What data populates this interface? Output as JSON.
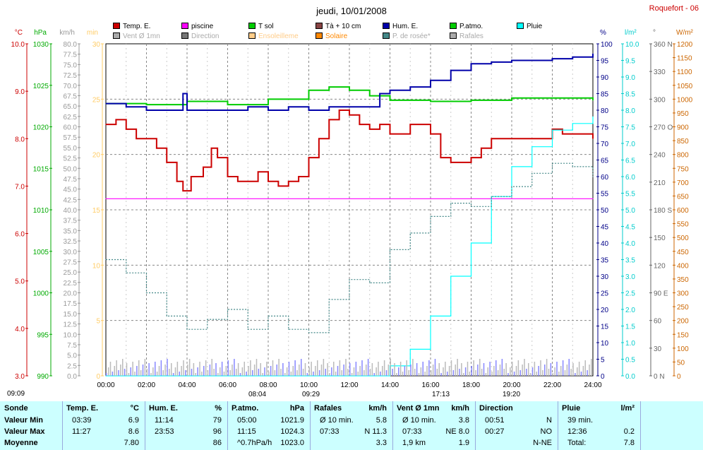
{
  "title": "jeudi, 10/01/2008",
  "station": "Roquefort - 06",
  "legend": [
    {
      "label": "Temp. E.",
      "color": "#cc0000"
    },
    {
      "label": "piscine",
      "color": "#ff00ff"
    },
    {
      "label": "T sol",
      "color": "#00cc00"
    },
    {
      "label": "Tà + 10 cm",
      "color": "#884444"
    },
    {
      "label": "Hum. E.",
      "color": "#0000aa"
    },
    {
      "label": "P.atmo.",
      "color": "#00cc00"
    },
    {
      "label": "Pluie",
      "color": "#00ffff"
    },
    {
      "label": "Vent Ø 1mn",
      "color": "#aaaaaa"
    },
    {
      "label": "Direction",
      "color": "#777777"
    },
    {
      "label": "Ensoleilleme",
      "color": "#ffcc88"
    },
    {
      "label": "Solaire",
      "color": "#ff8800"
    },
    {
      "label": "P. de rosée*",
      "color": "#448888"
    },
    {
      "label": "Rafales",
      "color": "#aaaaaa"
    }
  ],
  "axes": {
    "temp": {
      "unit": "°C",
      "ticks": [
        "10.0",
        "9.0",
        "8.0",
        "7.0",
        "6.0",
        "5.0",
        "4.0",
        "3.0"
      ],
      "color": "#cc0000"
    },
    "pres": {
      "unit": "hPa",
      "ticks": [
        "1030",
        "1025",
        "1020",
        "1015",
        "1010",
        "1005",
        "1000",
        "995",
        "990"
      ],
      "color": "#00aa00"
    },
    "wind": {
      "unit": "km/h",
      "ticks": [
        "80.0",
        "77.5",
        "75.0",
        "72.5",
        "70.0",
        "67.5",
        "65.0",
        "62.5",
        "60.0",
        "57.5",
        "55.0",
        "52.5",
        "50.0",
        "47.5",
        "45.0",
        "42.5",
        "40.0",
        "37.5",
        "35.0",
        "32.5",
        "30.0",
        "27.5",
        "25.0",
        "22.5",
        "20.0",
        "17.5",
        "15.0",
        "12.5",
        "10.0",
        "7.5",
        "5.0",
        "2.5",
        "0.0"
      ],
      "color": "#999999"
    },
    "min": {
      "unit": "min",
      "ticks": [
        "30",
        "25",
        "20",
        "15",
        "10",
        "5",
        "0"
      ],
      "color": "#ffcc66"
    },
    "hum": {
      "unit": "%",
      "ticks": [
        "100",
        "95",
        "90",
        "85",
        "80",
        "75",
        "70",
        "65",
        "60",
        "55",
        "50",
        "45",
        "40",
        "35",
        "30",
        "25",
        "20",
        "15",
        "10",
        "5",
        "0"
      ],
      "color": "#000088"
    },
    "rain": {
      "unit": "l/m²",
      "ticks": [
        "10.0",
        "9.5",
        "9.0",
        "8.5",
        "8.0",
        "7.5",
        "7.0",
        "6.5",
        "6.0",
        "5.5",
        "5.0",
        "4.5",
        "4.0",
        "3.5",
        "3.0",
        "2.5",
        "2.0",
        "1.5",
        "1.0",
        "0.5",
        "0.0"
      ],
      "color": "#00cccc"
    },
    "dir": {
      "unit": "°",
      "ticks": [
        "360 N",
        "330",
        "300",
        "270 O",
        "240",
        "210",
        "180 S",
        "150",
        "120",
        "90 E",
        "60",
        "30",
        "0 N"
      ],
      "color": "#666666"
    },
    "solar": {
      "unit": "W/m²",
      "ticks": [
        "1200",
        "1150",
        "1100",
        "1050",
        "1000",
        "950",
        "900",
        "850",
        "800",
        "750",
        "700",
        "650",
        "600",
        "550",
        "500",
        "450",
        "400",
        "350",
        "300",
        "250",
        "200",
        "150",
        "100",
        "50",
        "0"
      ],
      "color": "#cc6600"
    },
    "x_ticks": [
      "00:00",
      "02:00",
      "04:00",
      "06:00",
      "08:00",
      "10:00",
      "12:00",
      "14:00",
      "16:00",
      "18:00",
      "20:00",
      "22:00",
      "24:00"
    ]
  },
  "sun_marks": [
    "09:09",
    "08:04",
    "09:29",
    "17:13",
    "19:20"
  ],
  "chart_data": {
    "type": "line",
    "x_unit": "hours",
    "series": [
      {
        "name": "Temp. E.",
        "axis": "temp",
        "color": "#cc0000",
        "points": [
          [
            0,
            8.3
          ],
          [
            0.5,
            8.4
          ],
          [
            1,
            8.2
          ],
          [
            1.5,
            8.0
          ],
          [
            2,
            8.0
          ],
          [
            2.5,
            7.8
          ],
          [
            3,
            7.5
          ],
          [
            3.5,
            7.1
          ],
          [
            3.8,
            6.9
          ],
          [
            4.2,
            7.2
          ],
          [
            4.8,
            7.4
          ],
          [
            5.2,
            7.8
          ],
          [
            5.5,
            7.6
          ],
          [
            6,
            7.2
          ],
          [
            6.5,
            7.1
          ],
          [
            7,
            7.1
          ],
          [
            7.5,
            7.3
          ],
          [
            8,
            7.1
          ],
          [
            8.5,
            7.0
          ],
          [
            9,
            7.1
          ],
          [
            9.5,
            7.2
          ],
          [
            10,
            7.6
          ],
          [
            10.5,
            8.0
          ],
          [
            11,
            8.4
          ],
          [
            11.5,
            8.6
          ],
          [
            12,
            8.5
          ],
          [
            12.5,
            8.3
          ],
          [
            13,
            8.2
          ],
          [
            13.5,
            8.3
          ],
          [
            14,
            8.1
          ],
          [
            15,
            8.3
          ],
          [
            16,
            8.1
          ],
          [
            16.5,
            7.6
          ],
          [
            17,
            7.5
          ],
          [
            18,
            7.6
          ],
          [
            18.5,
            7.8
          ],
          [
            19,
            8.0
          ],
          [
            20,
            8.0
          ],
          [
            21,
            8.0
          ],
          [
            22,
            8.2
          ],
          [
            22.5,
            8.1
          ],
          [
            24,
            8.0
          ]
        ]
      },
      {
        "name": "piscine",
        "axis": "min",
        "color": "#ff00ff",
        "points": [
          [
            0,
            16
          ],
          [
            24,
            16
          ]
        ]
      },
      {
        "name": "T sol",
        "axis": "min",
        "color": "#00cc00",
        "points": [
          [
            0,
            24.6
          ],
          [
            2,
            24.5
          ],
          [
            4,
            24.8
          ],
          [
            6,
            24.5
          ],
          [
            8,
            25.0
          ],
          [
            10,
            25.8
          ],
          [
            11,
            26.1
          ],
          [
            12,
            25.8
          ],
          [
            13,
            25.3
          ],
          [
            14,
            24.9
          ],
          [
            16,
            24.8
          ],
          [
            18,
            24.9
          ],
          [
            20,
            25.1
          ],
          [
            24,
            24.9
          ]
        ]
      },
      {
        "name": "Hum. E.",
        "axis": "hum",
        "color": "#0000aa",
        "points": [
          [
            0,
            82
          ],
          [
            1,
            81
          ],
          [
            2,
            80
          ],
          [
            3,
            80
          ],
          [
            3.8,
            85
          ],
          [
            4,
            80
          ],
          [
            6,
            80
          ],
          [
            7,
            81
          ],
          [
            8,
            80
          ],
          [
            9,
            81
          ],
          [
            10,
            80
          ],
          [
            11,
            81
          ],
          [
            12,
            81
          ],
          [
            13,
            81
          ],
          [
            13.5,
            85
          ],
          [
            14,
            86
          ],
          [
            15,
            87
          ],
          [
            16,
            89
          ],
          [
            17,
            92
          ],
          [
            18,
            94
          ],
          [
            19,
            94.5
          ],
          [
            20,
            95
          ],
          [
            21,
            95
          ],
          [
            22,
            95.5
          ],
          [
            23,
            96
          ],
          [
            24,
            97
          ]
        ]
      },
      {
        "name": "Pluie",
        "axis": "rain",
        "color": "#00ffff",
        "points": [
          [
            0,
            0
          ],
          [
            13,
            0
          ],
          [
            14,
            0.3
          ],
          [
            15,
            0.8
          ],
          [
            16,
            1.8
          ],
          [
            17,
            3.0
          ],
          [
            18,
            4.0
          ],
          [
            19,
            5.4
          ],
          [
            20,
            6.3
          ],
          [
            21,
            6.9
          ],
          [
            22,
            7.4
          ],
          [
            23,
            7.6
          ],
          [
            24,
            7.8
          ]
        ]
      },
      {
        "name": "P. de rosée*",
        "axis": "hum",
        "color": "#448888",
        "points": [
          [
            0,
            35
          ],
          [
            1,
            31
          ],
          [
            2,
            25
          ],
          [
            3,
            18
          ],
          [
            4,
            14
          ],
          [
            5,
            17
          ],
          [
            6,
            20
          ],
          [
            7,
            14
          ],
          [
            8,
            18
          ],
          [
            9,
            14
          ],
          [
            10,
            13
          ],
          [
            11,
            23
          ],
          [
            12,
            29
          ],
          [
            13,
            28
          ],
          [
            14,
            38
          ],
          [
            15,
            43
          ],
          [
            16,
            48
          ],
          [
            17,
            52
          ],
          [
            18,
            51
          ],
          [
            19,
            54
          ],
          [
            20,
            57
          ],
          [
            21,
            61
          ],
          [
            22,
            64
          ],
          [
            23,
            63
          ],
          [
            24,
            60
          ]
        ]
      }
    ]
  },
  "table": {
    "columns": [
      {
        "head": "Sonde",
        "unit": ""
      },
      {
        "head": "Temp. E.",
        "unit": "°C"
      },
      {
        "head": "Hum. E.",
        "unit": "%"
      },
      {
        "head": "P.atmo.",
        "unit": "hPa"
      },
      {
        "head": "Rafales",
        "unit": "km/h"
      },
      {
        "head": "Vent Ø 1mn",
        "unit": "km/h"
      },
      {
        "head": "Direction",
        "unit": ""
      },
      {
        "head": "Pluie",
        "unit": "l/m²"
      }
    ],
    "rows": [
      {
        "label": "Valeur Min",
        "temp_t": "03:39",
        "temp_v": "6.9",
        "hum_t": "11:14",
        "hum_v": "79",
        "pres_t": "05:00",
        "pres_v": "1021.9",
        "raf_t": "Ø 10 min.",
        "raf_v": "5.8",
        "vent_t": "Ø 10 min.",
        "vent_v": "3.8",
        "dir_t": "00:51",
        "dir_v": "N",
        "pluie_t": "39 min.",
        "pluie_v": ""
      },
      {
        "label": "Valeur Max",
        "temp_t": "11:27",
        "temp_v": "8.6",
        "hum_t": "23:53",
        "hum_v": "96",
        "pres_t": "11:15",
        "pres_v": "1024.3",
        "raf_t": "07:33",
        "raf_v": "N 11.3",
        "vent_t": "07:33",
        "vent_v": "NE 8.0",
        "dir_t": "00:27",
        "dir_v": "NO",
        "pluie_t": "12:36",
        "pluie_v": "0.2"
      },
      {
        "label": "Moyenne",
        "temp_t": "",
        "temp_v": "7.80",
        "hum_t": "",
        "hum_v": "86",
        "pres_t": "^0.7hPa/h",
        "pres_v": "1023.0",
        "raf_t": "",
        "raf_v": "3.3",
        "vent_t": "1,9 km",
        "vent_v": "1.9",
        "dir_t": "",
        "dir_v": "N-NE",
        "pluie_t": "Total:",
        "pluie_v": "7.8"
      }
    ]
  }
}
